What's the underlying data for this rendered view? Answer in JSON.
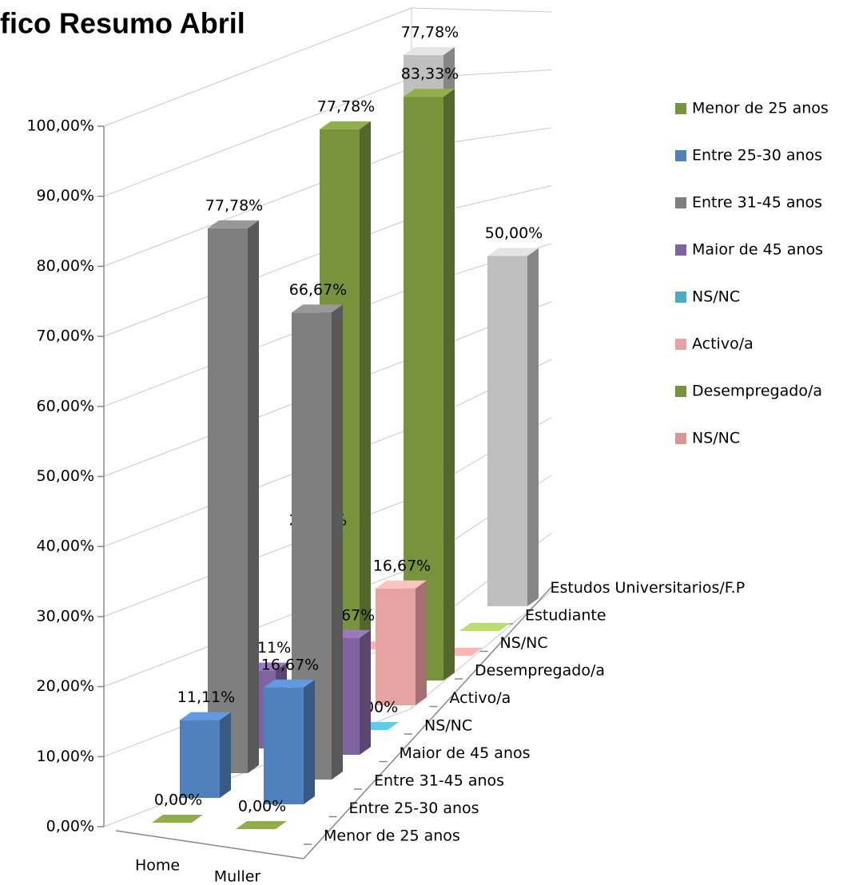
{
  "chart_data": {
    "type": "bar3d",
    "title": "fico Resumo Abril",
    "categories": [
      "Home",
      "Muller"
    ],
    "series": [
      {
        "name": "Menor de 25 anos",
        "color": "#77933c",
        "values": [
          0,
          0
        ],
        "value_labels": [
          "0,00%",
          "0,00%"
        ]
      },
      {
        "name": "Entre 25-30 anos",
        "color": "#4f81bd",
        "values": [
          11.11,
          16.67
        ],
        "value_labels": [
          "11,11%",
          "16,67%"
        ]
      },
      {
        "name": "Entre 31-45 anos",
        "color": "#7f7f7f",
        "values": [
          77.78,
          66.67
        ],
        "value_labels": [
          "77,78%",
          "66,67%"
        ]
      },
      {
        "name": "Maior de 45 anos",
        "color": "#8064a2",
        "values": [
          11.11,
          16.67
        ],
        "value_labels": [
          "11,11%",
          "16,67%"
        ]
      },
      {
        "name": "NS/NC",
        "color": "#4bacc6",
        "values": [
          0,
          0
        ],
        "value_labels": [
          null,
          "0,00%"
        ]
      },
      {
        "name": "Activo/a",
        "color": "#e6a3a1",
        "values": [
          22.22,
          16.67
        ],
        "value_labels": [
          "22,22%",
          "16,67%"
        ]
      },
      {
        "name": "Desempregado/a",
        "color": "#77933c",
        "values": [
          77.78,
          83.33
        ],
        "value_labels": [
          "77,78%",
          "83,33%"
        ]
      },
      {
        "name": "NS/NC",
        "color": "#d99694",
        "values": [
          0,
          0
        ],
        "value_labels": [
          null,
          null
        ]
      },
      {
        "name": "Estudiante",
        "color": "#9bbb59",
        "values": [
          0,
          0
        ],
        "value_labels": [
          null,
          null
        ]
      },
      {
        "name": "Estudos Universitarios/F.P",
        "color": "#bfbfbf",
        "values": [
          77.78,
          50
        ],
        "value_labels": [
          "77,78%",
          "50,00%"
        ]
      }
    ],
    "ylim": [
      0,
      100
    ],
    "yticks": [
      {
        "value": 0,
        "label": "0,00%"
      },
      {
        "value": 10,
        "label": "10,00%"
      },
      {
        "value": 20,
        "label": "20,00%"
      },
      {
        "value": 30,
        "label": "30,00%"
      },
      {
        "value": 40,
        "label": "40,00%"
      },
      {
        "value": 50,
        "label": "50,00%"
      },
      {
        "value": 60,
        "label": "60,00%"
      },
      {
        "value": 70,
        "label": "70,00%"
      },
      {
        "value": 80,
        "label": "80,00%"
      },
      {
        "value": 90,
        "label": "90,00%"
      },
      {
        "value": 100,
        "label": "100,00%"
      }
    ],
    "grid": true
  }
}
